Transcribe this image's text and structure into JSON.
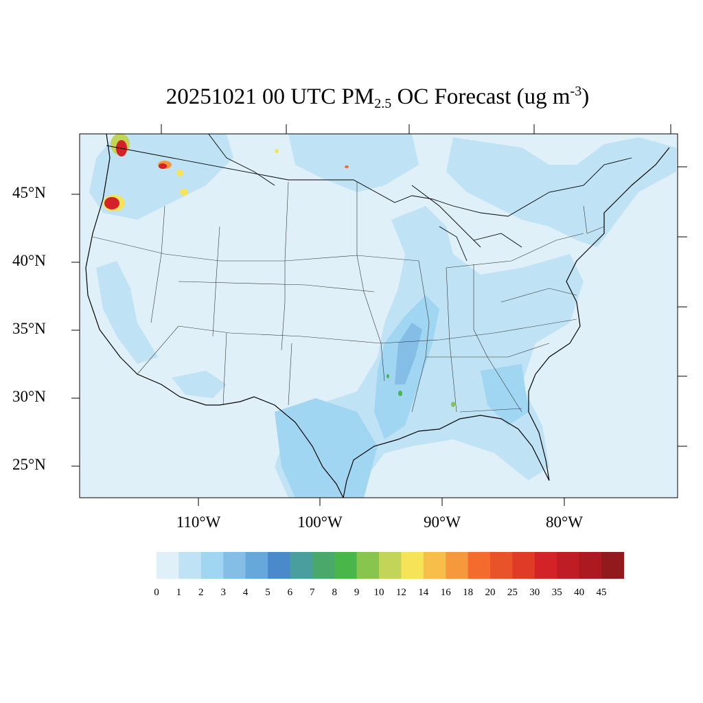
{
  "title": {
    "prefix": "20251021 00 UTC PM",
    "sub": "2.5",
    "middle": " OC Forecast (ug m",
    "sup": "-3",
    "suffix": ")"
  },
  "axes": {
    "lat_labels": [
      "45°N",
      "40°N",
      "35°N",
      "30°N",
      "25°N"
    ],
    "lon_labels": [
      "110°W",
      "100°W",
      "90°W",
      "80°W"
    ]
  },
  "colorbar": {
    "levels": [
      "0",
      "1",
      "2",
      "3",
      "4",
      "5",
      "6",
      "7",
      "8",
      "9",
      "10",
      "12",
      "14",
      "16",
      "18",
      "20",
      "25",
      "30",
      "35",
      "40",
      "45"
    ],
    "colors": [
      "#dff0f9",
      "#bfe3f5",
      "#a0d6f2",
      "#84bde6",
      "#66a8da",
      "#4a8acb",
      "#4a9e9e",
      "#49a86a",
      "#49b649",
      "#88c54e",
      "#c2d558",
      "#f6e357",
      "#f8be4a",
      "#f6993d",
      "#f36c2e",
      "#e9532a",
      "#df3b26",
      "#d42229",
      "#bf1d25",
      "#ad1920",
      "#921a1d"
    ]
  },
  "map": {
    "ocean_color": "#dff0f9",
    "land_base_color": "#dff0f9",
    "line_color": "#000000"
  }
}
